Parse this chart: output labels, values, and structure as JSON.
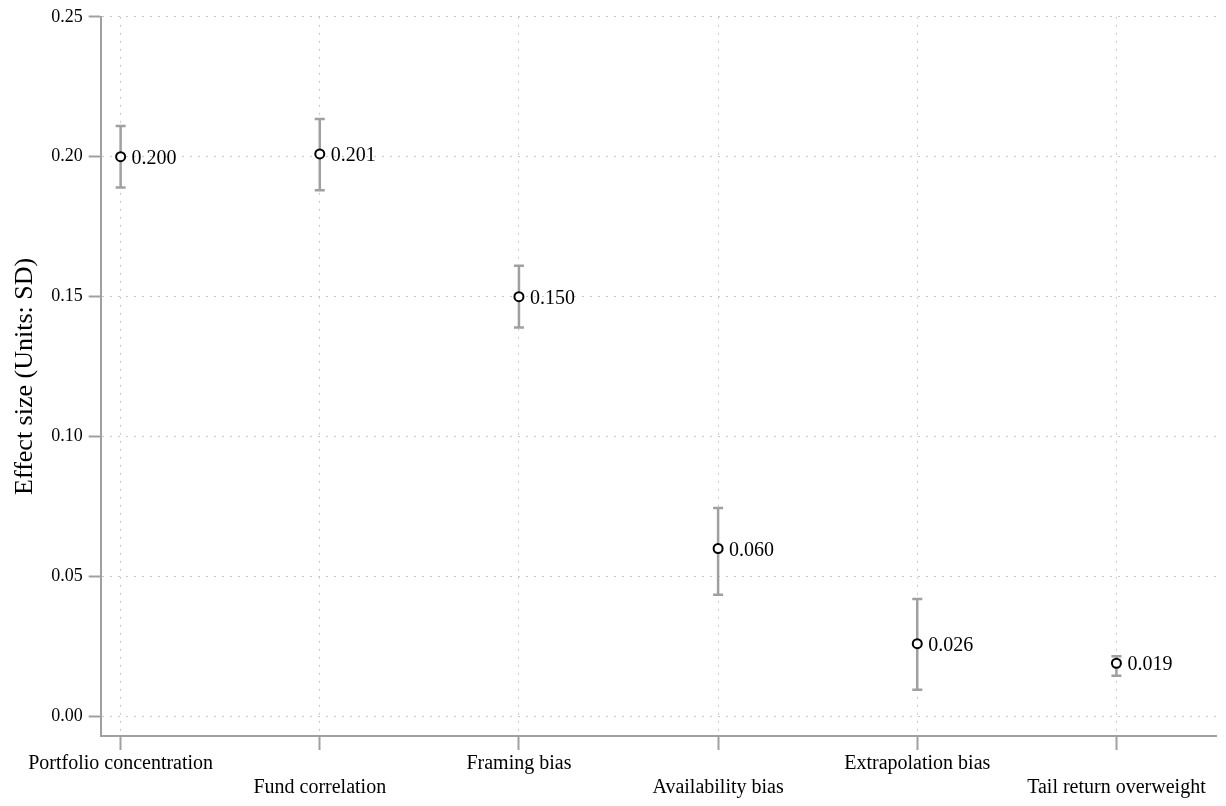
{
  "chart_data": {
    "type": "scatter",
    "ylabel": "Effect size (Units: SD)",
    "categories": [
      "Portfolio concentration",
      "Fund correlation",
      "Framing bias",
      "Availability bias",
      "Extrapolation bias",
      "Tail return overweight"
    ],
    "series": [
      {
        "color": "#000000",
        "values": [
          0.2,
          0.201,
          0.15,
          0.06,
          0.026,
          0.019
        ],
        "value_labels": [
          "0.200",
          "0.201",
          "0.150",
          "0.060",
          "0.026",
          "0.019"
        ],
        "errors": [
          [
            0.189,
            0.211
          ],
          [
            0.188,
            0.2135
          ],
          [
            0.139,
            0.161
          ],
          [
            0.0435,
            0.0745
          ],
          [
            0.0095,
            0.042
          ],
          [
            0.0145,
            0.0215
          ]
        ]
      }
    ],
    "ylim": [
      -0.007,
      0.25
    ],
    "yticks": [
      {
        "value": 0,
        "label": "0.00"
      },
      {
        "value": 0.05,
        "label": "0.05"
      },
      {
        "value": 0.1,
        "label": "0.10"
      },
      {
        "value": 0.15,
        "label": "0.15"
      },
      {
        "value": 0.2,
        "label": "0.20"
      },
      {
        "value": 0.25,
        "label": "0.25"
      }
    ],
    "grid": true,
    "marker": "circle",
    "legend": false
  }
}
